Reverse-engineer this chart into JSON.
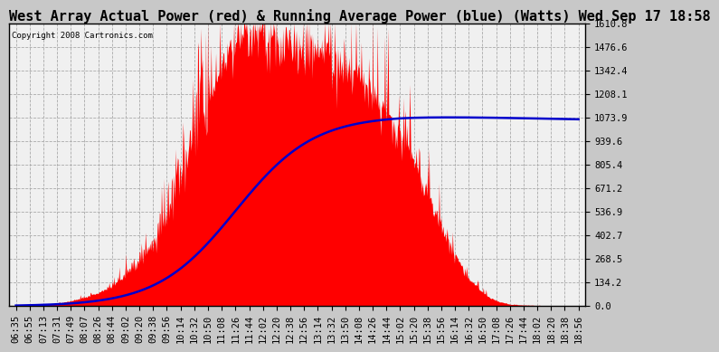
{
  "title": "West Array Actual Power (red) & Running Average Power (blue) (Watts) Wed Sep 17 18:58",
  "copyright": "Copyright 2008 Cartronics.com",
  "ylabel_values": [
    0.0,
    134.2,
    268.5,
    402.7,
    536.9,
    671.2,
    805.4,
    939.6,
    1073.9,
    1208.1,
    1342.4,
    1476.6,
    1610.8
  ],
  "ymax": 1610.8,
  "ymin": 0.0,
  "bg_color": "#c8c8c8",
  "plot_bg_color": "#f0f0f0",
  "grid_color": "#aaaaaa",
  "red_color": "#ff0000",
  "blue_color": "#0000cc",
  "title_fontsize": 11,
  "tick_fontsize": 7.5,
  "x_labels": [
    "06:35",
    "06:55",
    "07:13",
    "07:31",
    "07:49",
    "08:07",
    "08:26",
    "08:44",
    "09:02",
    "09:20",
    "09:38",
    "09:56",
    "10:14",
    "10:32",
    "10:50",
    "11:08",
    "11:26",
    "11:44",
    "12:02",
    "12:20",
    "12:38",
    "12:56",
    "13:14",
    "13:32",
    "13:50",
    "14:08",
    "14:26",
    "14:44",
    "15:02",
    "15:20",
    "15:38",
    "15:56",
    "16:14",
    "16:32",
    "16:50",
    "17:08",
    "17:26",
    "17:44",
    "18:02",
    "18:20",
    "18:38",
    "18:56"
  ]
}
